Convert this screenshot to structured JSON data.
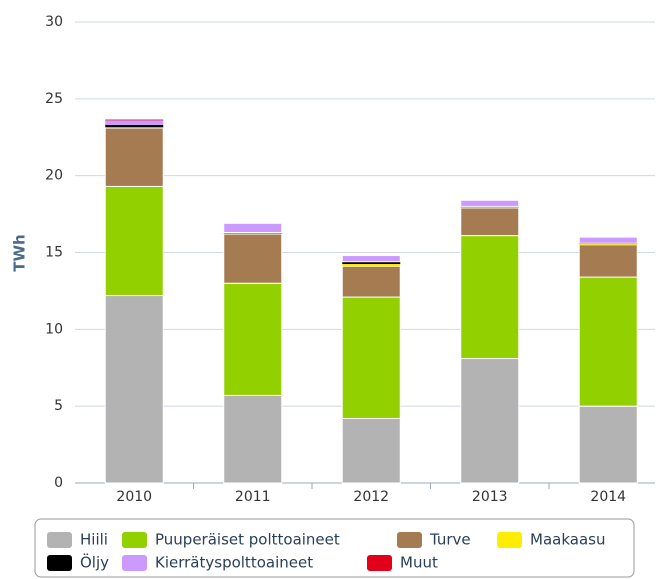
{
  "chart_data": {
    "type": "bar",
    "stacked": true,
    "y_label": "TWh",
    "categories": [
      "2010",
      "2011",
      "2012",
      "2013",
      "2014"
    ],
    "series": [
      {
        "name": "Hiili",
        "color": "#b3b3b3",
        "values": [
          12.2,
          5.7,
          4.2,
          8.1,
          5.0
        ]
      },
      {
        "name": "Puuperäiset polttoaineet",
        "color": "#92d000",
        "values": [
          7.1,
          7.3,
          7.9,
          8.0,
          8.4
        ]
      },
      {
        "name": "Turve",
        "color": "#a57c52",
        "values": [
          3.8,
          3.2,
          2.0,
          1.8,
          2.1
        ]
      },
      {
        "name": "Maakaasu",
        "color": "#ffed00",
        "values": [
          0.05,
          0.05,
          0.15,
          0.05,
          0.05
        ]
      },
      {
        "name": "Öljy",
        "color": "#000000",
        "values": [
          0.15,
          0.05,
          0.15,
          0.05,
          0.05
        ]
      },
      {
        "name": "Kierrätyspolttoaineet",
        "color": "#cc99ff",
        "values": [
          0.3,
          0.6,
          0.4,
          0.4,
          0.4
        ]
      },
      {
        "name": "Muut",
        "color": "#e3001b",
        "values": [
          0.05,
          0,
          0,
          0,
          0
        ]
      }
    ],
    "ylim": [
      0,
      30
    ],
    "yticks": [
      0,
      5,
      10,
      15,
      20,
      25,
      30
    ],
    "grid": true,
    "legend": "bottom"
  }
}
